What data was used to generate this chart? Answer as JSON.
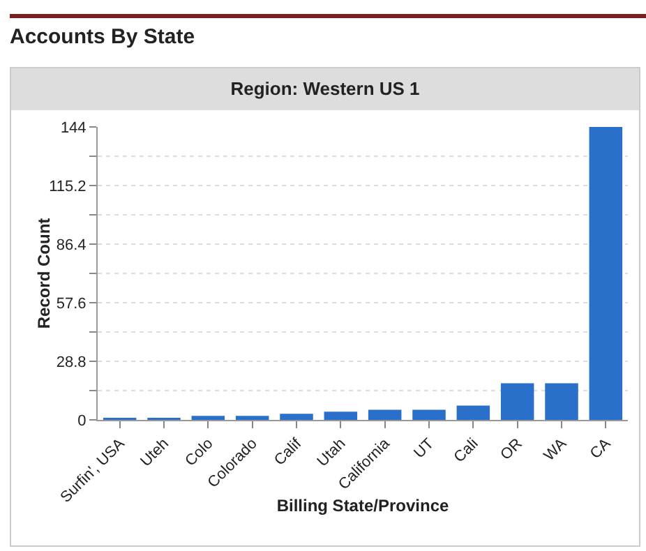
{
  "chart_data": {
    "type": "bar",
    "title": "Accounts By State",
    "subtitle": "Region: Western US 1",
    "xlabel": "Billing State/Province",
    "ylabel": "Record Count",
    "categories": [
      "Surfin', USA",
      "Uteh",
      "Colo",
      "Colorado",
      "Calif",
      "Utah",
      "California",
      "UT",
      "Cali",
      "OR",
      "WA",
      "CA"
    ],
    "values": [
      1,
      1,
      2,
      2,
      3,
      4,
      5,
      5,
      7,
      18,
      18,
      144
    ],
    "color": "#2a6fc9",
    "ylim": [
      0,
      144
    ],
    "yticks": [
      0,
      {
        "value": 14.4,
        "label": null
      },
      28.8,
      {
        "value": 43.2,
        "label": null
      },
      57.6,
      {
        "value": 72,
        "label": null
      },
      86.4,
      {
        "value": 100.8,
        "label": null
      },
      115.2,
      {
        "value": 129.6,
        "label": null
      },
      144
    ],
    "grid": "y",
    "line_style": "dotted"
  }
}
